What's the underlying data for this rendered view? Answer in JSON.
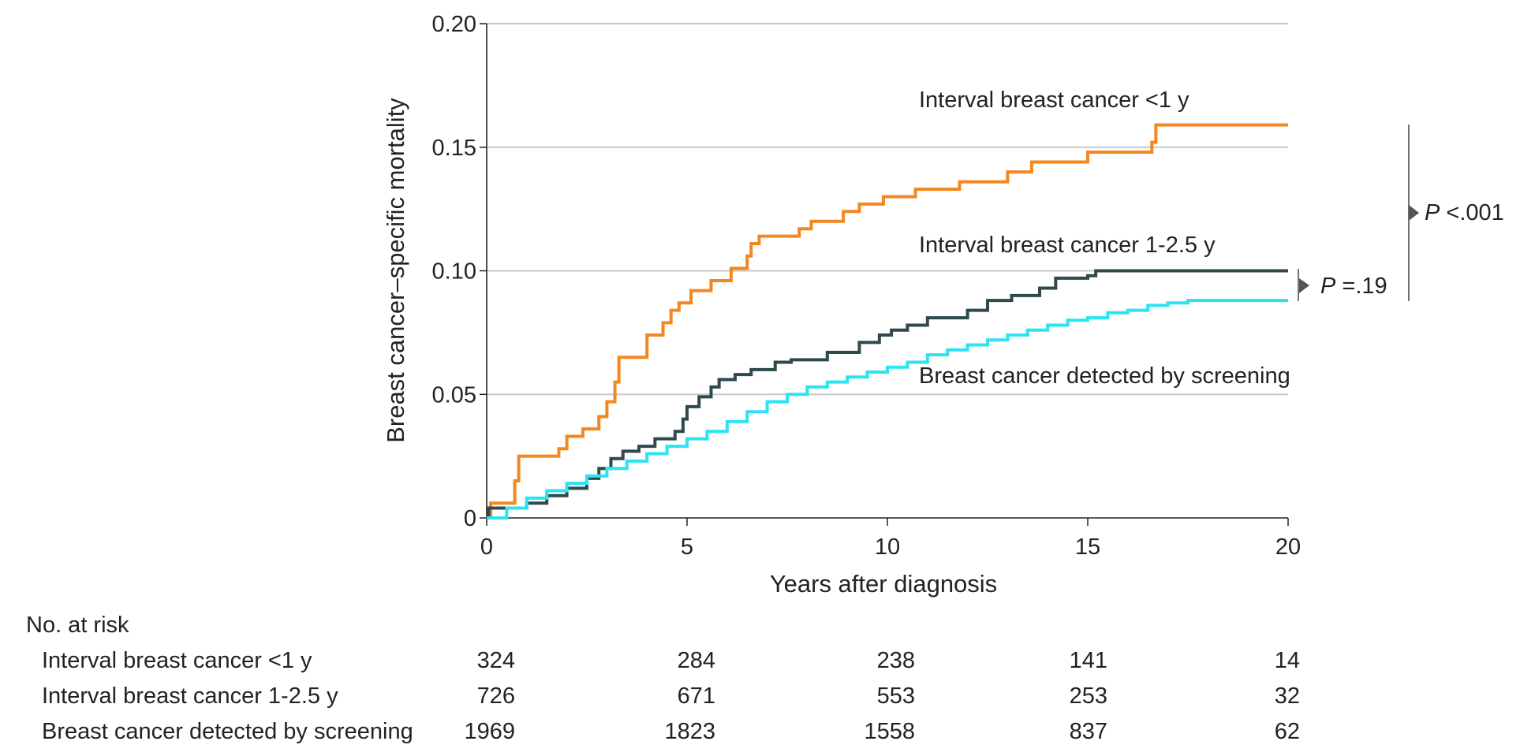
{
  "chart_data": {
    "type": "line",
    "xlabel": "Years after diagnosis",
    "ylabel": "Breast cancer–specific mortality",
    "xlim": [
      0,
      20
    ],
    "ylim": [
      0,
      0.2
    ],
    "x_ticks": [
      "0",
      "5",
      "10",
      "15",
      "20"
    ],
    "y_ticks": [
      "0",
      "0.05",
      "0.10",
      "0.15",
      "0.20"
    ],
    "grid": "horizontal",
    "series": [
      {
        "name": "Interval breast cancer <1 y",
        "color": "#F5871F",
        "points": [
          [
            0,
            0
          ],
          [
            0.1,
            0.006
          ],
          [
            0.6,
            0.006
          ],
          [
            0.7,
            0.015
          ],
          [
            0.8,
            0.025
          ],
          [
            1.6,
            0.025
          ],
          [
            1.8,
            0.028
          ],
          [
            2.0,
            0.033
          ],
          [
            2.4,
            0.036
          ],
          [
            2.8,
            0.041
          ],
          [
            3.0,
            0.047
          ],
          [
            3.2,
            0.055
          ],
          [
            3.3,
            0.065
          ],
          [
            4.0,
            0.074
          ],
          [
            4.4,
            0.079
          ],
          [
            4.6,
            0.084
          ],
          [
            4.8,
            0.087
          ],
          [
            5.1,
            0.092
          ],
          [
            5.6,
            0.096
          ],
          [
            6.1,
            0.101
          ],
          [
            6.5,
            0.106
          ],
          [
            6.6,
            0.111
          ],
          [
            6.8,
            0.114
          ],
          [
            7.8,
            0.117
          ],
          [
            8.1,
            0.12
          ],
          [
            8.9,
            0.124
          ],
          [
            9.3,
            0.127
          ],
          [
            9.9,
            0.13
          ],
          [
            10.7,
            0.133
          ],
          [
            11.8,
            0.136
          ],
          [
            13.0,
            0.14
          ],
          [
            13.6,
            0.144
          ],
          [
            15.0,
            0.148
          ],
          [
            16.6,
            0.152
          ],
          [
            16.7,
            0.159
          ],
          [
            20,
            0.159
          ]
        ]
      },
      {
        "name": "Interval breast cancer 1-2.5 y",
        "color": "#2E4A4C",
        "points": [
          [
            0,
            0
          ],
          [
            0.05,
            0.004
          ],
          [
            1.0,
            0.006
          ],
          [
            1.5,
            0.009
          ],
          [
            2.0,
            0.012
          ],
          [
            2.5,
            0.016
          ],
          [
            2.8,
            0.02
          ],
          [
            3.1,
            0.024
          ],
          [
            3.4,
            0.027
          ],
          [
            3.8,
            0.029
          ],
          [
            4.2,
            0.032
          ],
          [
            4.7,
            0.035
          ],
          [
            4.9,
            0.04
          ],
          [
            5.0,
            0.045
          ],
          [
            5.3,
            0.049
          ],
          [
            5.6,
            0.053
          ],
          [
            5.8,
            0.056
          ],
          [
            6.2,
            0.058
          ],
          [
            6.6,
            0.06
          ],
          [
            7.2,
            0.063
          ],
          [
            7.6,
            0.064
          ],
          [
            8.5,
            0.067
          ],
          [
            9.3,
            0.071
          ],
          [
            9.8,
            0.074
          ],
          [
            10.1,
            0.076
          ],
          [
            10.5,
            0.078
          ],
          [
            11.0,
            0.081
          ],
          [
            12.0,
            0.084
          ],
          [
            12.5,
            0.088
          ],
          [
            13.1,
            0.09
          ],
          [
            13.8,
            0.093
          ],
          [
            14.2,
            0.097
          ],
          [
            15.0,
            0.098
          ],
          [
            15.2,
            0.1
          ],
          [
            20,
            0.1
          ]
        ]
      },
      {
        "name": "Breast cancer detected by screening",
        "color": "#2CE3F2",
        "points": [
          [
            0,
            0
          ],
          [
            0.5,
            0.004
          ],
          [
            1.0,
            0.008
          ],
          [
            1.5,
            0.011
          ],
          [
            2.0,
            0.014
          ],
          [
            2.5,
            0.017
          ],
          [
            3.0,
            0.02
          ],
          [
            3.5,
            0.023
          ],
          [
            4.0,
            0.026
          ],
          [
            4.5,
            0.029
          ],
          [
            5.0,
            0.032
          ],
          [
            5.5,
            0.035
          ],
          [
            6.0,
            0.039
          ],
          [
            6.5,
            0.043
          ],
          [
            7.0,
            0.047
          ],
          [
            7.5,
            0.05
          ],
          [
            8.0,
            0.053
          ],
          [
            8.5,
            0.055
          ],
          [
            9.0,
            0.057
          ],
          [
            9.5,
            0.059
          ],
          [
            10.0,
            0.061
          ],
          [
            10.5,
            0.063
          ],
          [
            11.0,
            0.066
          ],
          [
            11.5,
            0.068
          ],
          [
            12.0,
            0.07
          ],
          [
            12.5,
            0.072
          ],
          [
            13.0,
            0.074
          ],
          [
            13.5,
            0.076
          ],
          [
            14.0,
            0.078
          ],
          [
            14.5,
            0.08
          ],
          [
            15.0,
            0.081
          ],
          [
            15.5,
            0.083
          ],
          [
            16.0,
            0.084
          ],
          [
            16.5,
            0.086
          ],
          [
            17.0,
            0.087
          ],
          [
            17.5,
            0.088
          ],
          [
            20,
            0.088
          ]
        ]
      }
    ],
    "annotations": {
      "label_lt1": "Interval breast cancer <1 y",
      "label_1_25": "Interval breast cancer 1-2.5 y",
      "label_screen": "Breast cancer detected by screening",
      "p1_italic": "P",
      "p1_value": " <.001",
      "p2_italic": "P",
      "p2_value": " =.19"
    },
    "risk_table": {
      "title": "No. at risk",
      "rows": [
        {
          "label": "Interval breast cancer <1 y",
          "values": [
            "324",
            "284",
            "238",
            "141",
            "14"
          ]
        },
        {
          "label": "Interval breast cancer 1-2.5 y",
          "values": [
            "726",
            "671",
            "553",
            "253",
            "32"
          ]
        },
        {
          "label": "Breast cancer detected by screening",
          "values": [
            "1969",
            "1823",
            "1558",
            "837",
            "62"
          ]
        }
      ]
    }
  }
}
